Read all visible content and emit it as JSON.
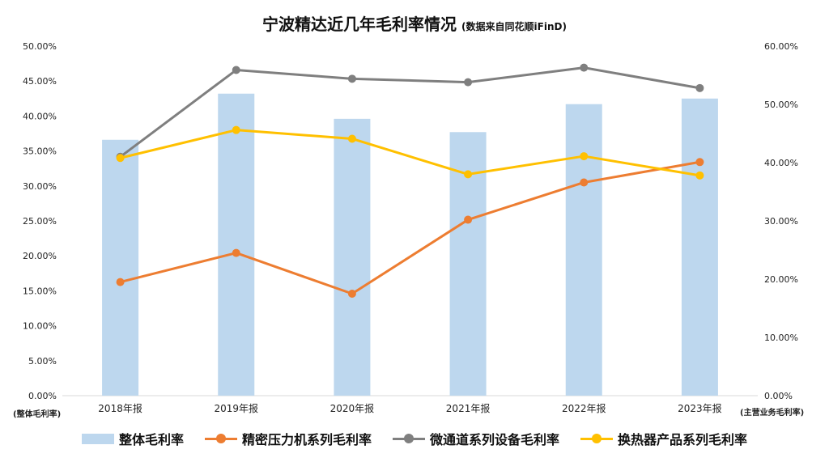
{
  "title": "宁波精达近几年毛利率情况",
  "subtitle": "(数据来自同花顺iFinD)",
  "left_unit": "(整体毛利率)",
  "right_unit": "(主营业务毛利率)",
  "chart_data": {
    "type": "bar",
    "categories": [
      "2018年报",
      "2019年报",
      "2020年报",
      "2021年报",
      "2022年报",
      "2023年报"
    ],
    "y_left": {
      "ticks": [
        "0.00%",
        "5.00%",
        "10.00%",
        "15.00%",
        "20.00%",
        "25.00%",
        "30.00%",
        "35.00%",
        "40.00%",
        "45.00%",
        "50.00%"
      ],
      "ylim": [
        0,
        50
      ]
    },
    "y_right": {
      "ticks": [
        "0.00%",
        "10.00%",
        "20.00%",
        "30.00%",
        "40.00%",
        "50.00%",
        "60.00%"
      ],
      "ylim": [
        0,
        60
      ]
    },
    "grid": false,
    "legend_position": "bottom",
    "series": [
      {
        "name": "整体毛利率",
        "type": "bar",
        "axis": "left",
        "color": "#BDD7EE",
        "values": [
          36.6,
          43.2,
          39.6,
          37.7,
          41.7,
          42.5
        ]
      },
      {
        "name": "精密压力机系列毛利率",
        "type": "line",
        "axis": "right",
        "color": "#ED7D31",
        "values": [
          19.5,
          24.5,
          17.5,
          30.2,
          36.6,
          40.1
        ]
      },
      {
        "name": "微通道系列设备毛利率",
        "type": "line",
        "axis": "right",
        "color": "#7F7F7F",
        "values": [
          41.0,
          55.9,
          54.4,
          53.8,
          56.3,
          52.8
        ]
      },
      {
        "name": "换热器产品系列毛利率",
        "type": "line",
        "axis": "right",
        "color": "#FFC000",
        "values": [
          40.8,
          45.6,
          44.1,
          38.0,
          41.1,
          37.8
        ]
      }
    ]
  }
}
